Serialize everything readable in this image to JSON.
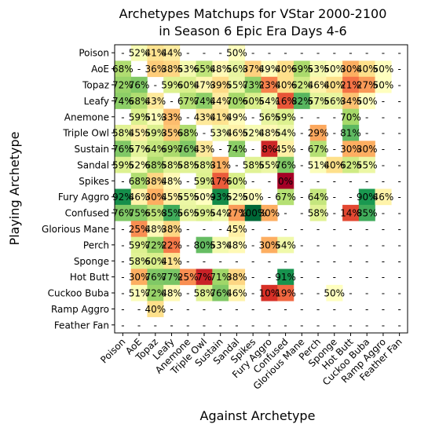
{
  "chart_data": {
    "type": "heatmap",
    "title": "Archetypes Matchups for VStar 2000-2100",
    "subtitle": "in Season 6 Epic Era Days 4-6",
    "xlabel": "Against Archetype",
    "ylabel": "Playing Archetype",
    "x_categories": [
      "Poison",
      "AoE",
      "Topaz",
      "Leafy",
      "Anemone",
      "Triple Owl",
      "Sustain",
      "Sandal",
      "Spikes",
      "Fury Aggro",
      "Confused",
      "Glorious Mane",
      "Perch",
      "Sponge",
      "Hot Butt",
      "Cuckoo Buba",
      "Ramp Aggro",
      "Feather Fan"
    ],
    "y_categories": [
      "Poison",
      "AoE",
      "Topaz",
      "Leafy",
      "Anemone",
      "Triple Owl",
      "Sustain",
      "Sandal",
      "Spikes",
      "Fury Aggro",
      "Confused",
      "Glorious Mane",
      "Perch",
      "Sponge",
      "Hot Butt",
      "Cuckoo Buba",
      "Ramp Aggro",
      "Feather Fan"
    ],
    "colormap": "RdYlGn",
    "value_range": [
      0,
      100
    ],
    "values": [
      [
        null,
        52,
        41,
        44,
        null,
        null,
        null,
        50,
        null,
        null,
        null,
        null,
        null,
        null,
        null,
        null,
        null,
        null
      ],
      [
        68,
        null,
        36,
        38,
        53,
        65,
        48,
        56,
        37,
        49,
        40,
        69,
        53,
        50,
        30,
        40,
        50,
        null
      ],
      [
        72,
        76,
        null,
        59,
        60,
        47,
        39,
        55,
        73,
        23,
        40,
        62,
        46,
        40,
        21,
        27,
        50,
        null
      ],
      [
        74,
        68,
        43,
        null,
        67,
        74,
        44,
        70,
        60,
        54,
        16,
        82,
        57,
        56,
        34,
        50,
        null,
        null
      ],
      [
        null,
        59,
        51,
        33,
        null,
        43,
        41,
        49,
        null,
        56,
        59,
        null,
        null,
        null,
        70,
        null,
        null,
        null
      ],
      [
        58,
        45,
        59,
        35,
        68,
        null,
        53,
        46,
        52,
        48,
        54,
        null,
        29,
        null,
        81,
        null,
        null,
        null
      ],
      [
        76,
        57,
        64,
        69,
        76,
        43,
        null,
        74,
        null,
        8,
        45,
        null,
        67,
        null,
        30,
        30,
        null,
        null
      ],
      [
        59,
        52,
        68,
        58,
        58,
        58,
        31,
        null,
        58,
        55,
        76,
        null,
        51,
        40,
        62,
        55,
        null,
        null
      ],
      [
        null,
        68,
        38,
        48,
        null,
        59,
        17,
        60,
        null,
        null,
        0,
        null,
        null,
        null,
        null,
        null,
        null,
        null
      ],
      [
        92,
        46,
        30,
        45,
        55,
        50,
        93,
        52,
        50,
        null,
        67,
        null,
        64,
        null,
        null,
        90,
        46,
        null
      ],
      [
        76,
        75,
        65,
        85,
        56,
        59,
        54,
        27,
        100,
        30,
        null,
        null,
        58,
        null,
        14,
        85,
        null,
        null
      ],
      [
        null,
        25,
        48,
        38,
        null,
        null,
        null,
        45,
        null,
        null,
        null,
        null,
        null,
        null,
        null,
        null,
        null,
        null
      ],
      [
        null,
        59,
        72,
        22,
        null,
        80,
        53,
        48,
        null,
        30,
        54,
        null,
        null,
        null,
        null,
        null,
        null,
        null
      ],
      [
        null,
        58,
        60,
        41,
        null,
        null,
        null,
        null,
        null,
        null,
        null,
        null,
        null,
        null,
        null,
        null,
        null,
        null
      ],
      [
        null,
        30,
        76,
        77,
        25,
        7,
        71,
        38,
        null,
        null,
        91,
        null,
        null,
        null,
        null,
        null,
        null,
        null
      ],
      [
        null,
        51,
        72,
        48,
        null,
        58,
        76,
        46,
        null,
        10,
        19,
        null,
        null,
        50,
        null,
        null,
        null,
        null
      ],
      [
        null,
        null,
        40,
        null,
        null,
        null,
        null,
        null,
        null,
        null,
        null,
        null,
        null,
        null,
        null,
        null,
        null,
        null
      ],
      [
        null,
        null,
        null,
        null,
        null,
        null,
        null,
        null,
        null,
        null,
        null,
        null,
        null,
        null,
        null,
        null,
        null,
        null
      ]
    ],
    "missing_label": "-",
    "value_suffix": "%",
    "grid": false,
    "legend": "none"
  }
}
